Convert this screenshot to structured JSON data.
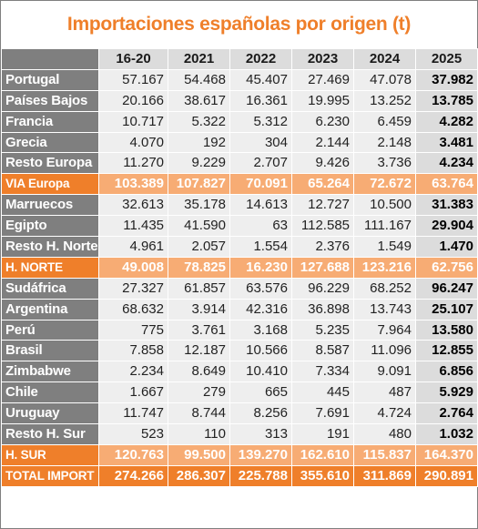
{
  "title": "Importaciones españolas por origen (t)",
  "colors": {
    "accent": "#ef7f2a",
    "accent_light": "#f7ac74",
    "label_bg": "#7f7f7f",
    "cell_bg": "#eeeeee",
    "header_bg": "#dcdcdc"
  },
  "headers": [
    "16-20",
    "2021",
    "2022",
    "2023",
    "2024",
    "2025"
  ],
  "rows": [
    {
      "kind": "data",
      "label": "Portugal",
      "values": [
        "57.167",
        "54.468",
        "45.407",
        "27.469",
        "47.078",
        "37.982"
      ]
    },
    {
      "kind": "data",
      "label": "Países Bajos",
      "values": [
        "20.166",
        "38.617",
        "16.361",
        "19.995",
        "13.252",
        "13.785"
      ]
    },
    {
      "kind": "data",
      "label": "Francia",
      "values": [
        "10.717",
        "5.322",
        "5.312",
        "6.230",
        "6.459",
        "4.282"
      ]
    },
    {
      "kind": "data",
      "label": "Grecia",
      "values": [
        "4.070",
        "192",
        "304",
        "2.144",
        "2.148",
        "3.481"
      ]
    },
    {
      "kind": "data",
      "label": "Resto Europa",
      "values": [
        "11.270",
        "9.229",
        "2.707",
        "9.426",
        "3.736",
        "4.234"
      ]
    },
    {
      "kind": "subtotal",
      "label": "VIA Europa",
      "values": [
        "103.389",
        "107.827",
        "70.091",
        "65.264",
        "72.672",
        "63.764"
      ]
    },
    {
      "kind": "data",
      "label": "Marruecos",
      "values": [
        "32.613",
        "35.178",
        "14.613",
        "12.727",
        "10.500",
        "31.383"
      ]
    },
    {
      "kind": "data",
      "label": "Egipto",
      "values": [
        "11.435",
        "41.590",
        "63",
        "112.585",
        "111.167",
        "29.904"
      ]
    },
    {
      "kind": "data",
      "label": "Resto H. Norte",
      "values": [
        "4.961",
        "2.057",
        "1.554",
        "2.376",
        "1.549",
        "1.470"
      ]
    },
    {
      "kind": "subtotal",
      "label": "H. NORTE",
      "values": [
        "49.008",
        "78.825",
        "16.230",
        "127.688",
        "123.216",
        "62.756"
      ]
    },
    {
      "kind": "data",
      "label": "Sudáfrica",
      "values": [
        "27.327",
        "61.857",
        "63.576",
        "96.229",
        "68.252",
        "96.247"
      ]
    },
    {
      "kind": "data",
      "label": "Argentina",
      "values": [
        "68.632",
        "3.914",
        "42.316",
        "36.898",
        "13.743",
        "25.107"
      ]
    },
    {
      "kind": "data",
      "label": "Perú",
      "values": [
        "775",
        "3.761",
        "3.168",
        "5.235",
        "7.964",
        "13.580"
      ]
    },
    {
      "kind": "data",
      "label": "Brasil",
      "values": [
        "7.858",
        "12.187",
        "10.566",
        "8.587",
        "11.096",
        "12.855"
      ]
    },
    {
      "kind": "data",
      "label": "Zimbabwe",
      "values": [
        "2.234",
        "8.649",
        "10.410",
        "7.334",
        "9.091",
        "6.856"
      ]
    },
    {
      "kind": "data",
      "label": "Chile",
      "values": [
        "1.667",
        "279",
        "665",
        "445",
        "487",
        "5.929"
      ]
    },
    {
      "kind": "data",
      "label": "Uruguay",
      "values": [
        "11.747",
        "8.744",
        "8.256",
        "7.691",
        "4.724",
        "2.764"
      ]
    },
    {
      "kind": "data",
      "label": "Resto H. Sur",
      "values": [
        "523",
        "110",
        "313",
        "191",
        "480",
        "1.032"
      ]
    },
    {
      "kind": "subtotal",
      "label": "H. SUR",
      "values": [
        "120.763",
        "99.500",
        "139.270",
        "162.610",
        "115.837",
        "164.370"
      ]
    },
    {
      "kind": "total",
      "label": "TOTAL IMPORT",
      "values": [
        "274.266",
        "286.307",
        "225.788",
        "355.610",
        "311.869",
        "290.891"
      ]
    }
  ]
}
